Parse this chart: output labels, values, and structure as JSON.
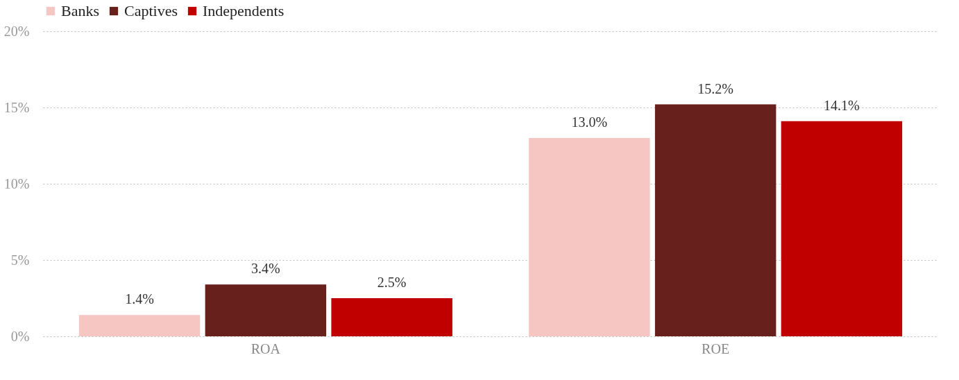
{
  "chart_data": {
    "type": "bar",
    "categories": [
      "ROA",
      "ROE"
    ],
    "series": [
      {
        "name": "Banks",
        "color": "#f5c6c2",
        "values": [
          1.4,
          13.0
        ],
        "value_labels": [
          "1.4%",
          "13.0%"
        ]
      },
      {
        "name": "Captives",
        "color": "#67201c",
        "values": [
          3.4,
          15.2
        ],
        "value_labels": [
          "3.4%",
          "15.2%"
        ]
      },
      {
        "name": "Independents",
        "color": "#c00000",
        "values": [
          2.5,
          14.1
        ],
        "value_labels": [
          "2.5%",
          "14.1%"
        ]
      }
    ],
    "ylim": [
      0,
      20
    ],
    "yticks": [
      {
        "value": 0,
        "label": "0%"
      },
      {
        "value": 5,
        "label": "5%"
      },
      {
        "value": 10,
        "label": "10%"
      },
      {
        "value": 15,
        "label": "15%"
      },
      {
        "value": 20,
        "label": "20%"
      }
    ],
    "grid": "y",
    "legend": "top"
  }
}
